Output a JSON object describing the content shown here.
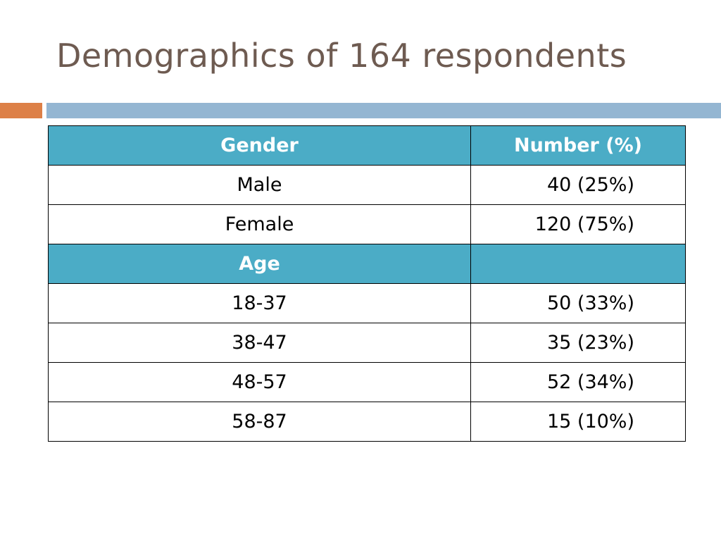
{
  "slide": {
    "title": "Demographics of 164 respondents"
  },
  "colors": {
    "title_text": "#6e5b51",
    "accent_orange": "#dd8047",
    "accent_blue": "#94b6d2",
    "header_fill": "#4bacc6"
  },
  "table": {
    "gender_header": {
      "label": "Gender",
      "value": "Number (%)"
    },
    "gender_rows": [
      {
        "label": "Male",
        "value": "40 (25%)"
      },
      {
        "label": "Female",
        "value": "120 (75%)"
      }
    ],
    "age_header": {
      "label": "Age",
      "value": ""
    },
    "age_rows": [
      {
        "label": "18-37",
        "value": "50 (33%)"
      },
      {
        "label": "38-47",
        "value": "35 (23%)"
      },
      {
        "label": "48-57",
        "value": "52 (34%)"
      },
      {
        "label": "58-87",
        "value": "15 (10%)"
      }
    ]
  }
}
